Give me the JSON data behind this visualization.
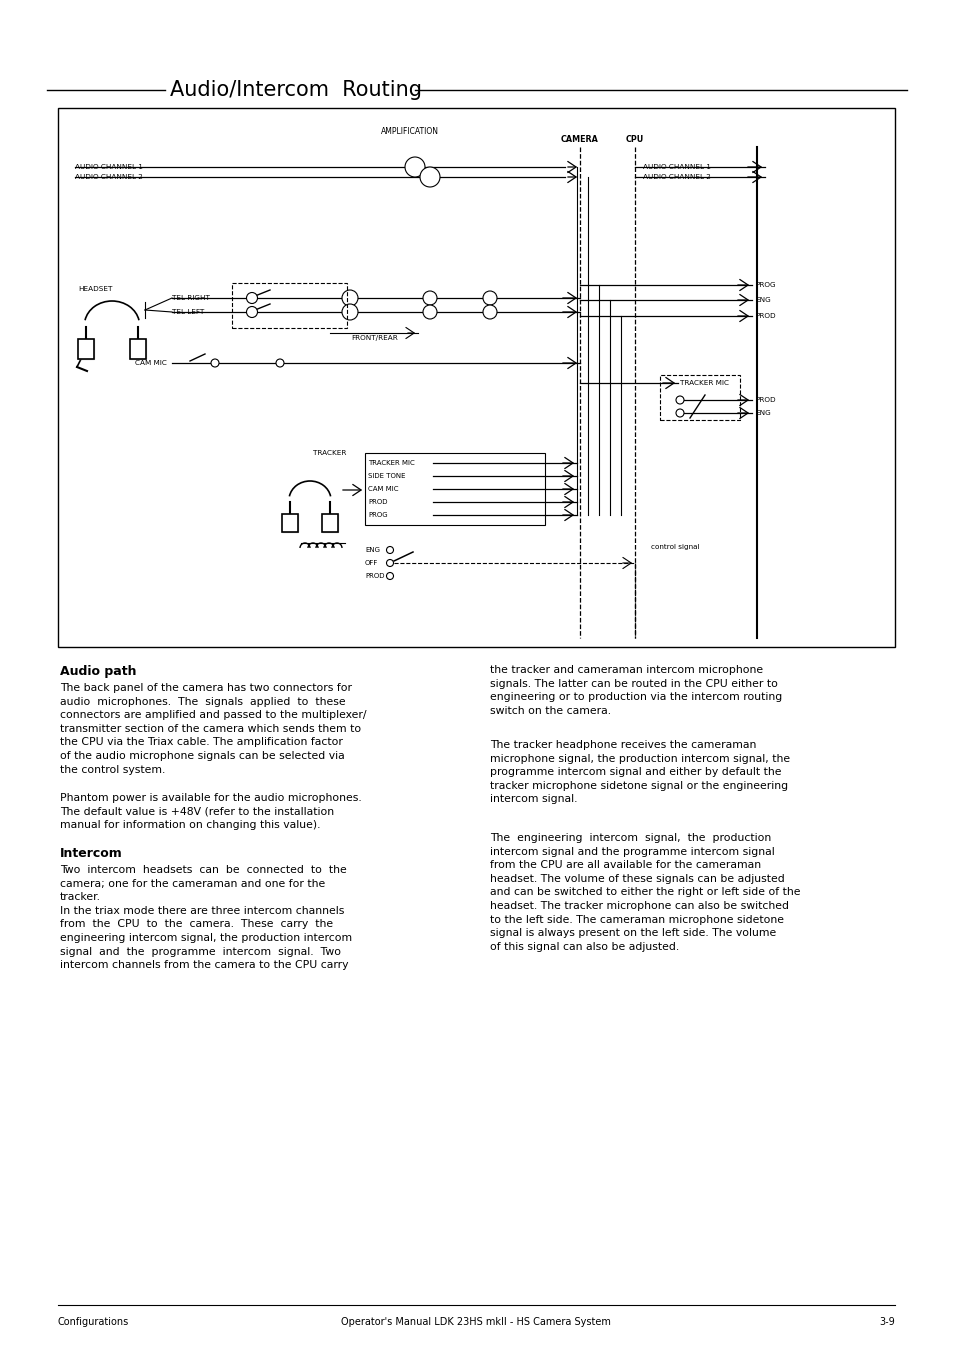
{
  "title": "Audio/Intercom  Routing",
  "page_bg": "#ffffff",
  "text_color": "#000000",
  "footer_text_left": "Configurations",
  "footer_text_center": "Operator's Manual LDK 23HS mkII - HS Camera System",
  "footer_text_right": "3-9",
  "section1_title": "Audio path",
  "section1_body1": "The back panel of the camera has two connectors for\naudio  microphones.  The  signals  applied  to  these\nconnectors are amplified and passed to the multiplexer/\ntransmitter section of the camera which sends them to\nthe CPU via the Triax cable. The amplification factor\nof the audio microphone signals can be selected via\nthe control system.",
  "section1_body2": "Phantom power is available for the audio microphones.\nThe default value is +48V (refer to the installation\nmanual for information on changing this value).",
  "section2_title": "Intercom",
  "section2_body": "Two  intercom  headsets  can  be  connected  to  the\ncamera; one for the cameraman and one for the\ntracker.\nIn the triax mode there are three intercom channels\nfrom  the  CPU  to  the  camera.  These  carry  the\nengineering intercom signal, the production intercom\nsignal  and  the  programme  intercom  signal.  Two\nintercom channels from the camera to the CPU carry",
  "col2_para1": "the tracker and cameraman intercom microphone\nsignals. The latter can be routed in the CPU either to\nengineering or to production via the intercom routing\nswitch on the camera.",
  "col2_para2": "The tracker headphone receives the cameraman\nmicrophone signal, the production intercom signal, the\nprogramme intercom signal and either by default the\ntracker microphone sidetone signal or the engineering\nintercom signal.",
  "col2_para3": "The  engineering  intercom  signal,  the  production\nintercom signal and the programme intercom signal\nfrom the CPU are all available for the cameraman\nheadset. The volume of these signals can be adjusted\nand can be switched to either the right or left side of the\nheadset. The tracker microphone can also be switched\nto the left side. The cameraman microphone sidetone\nsignal is always present on the left side. The volume\nof this signal can also be adjusted."
}
